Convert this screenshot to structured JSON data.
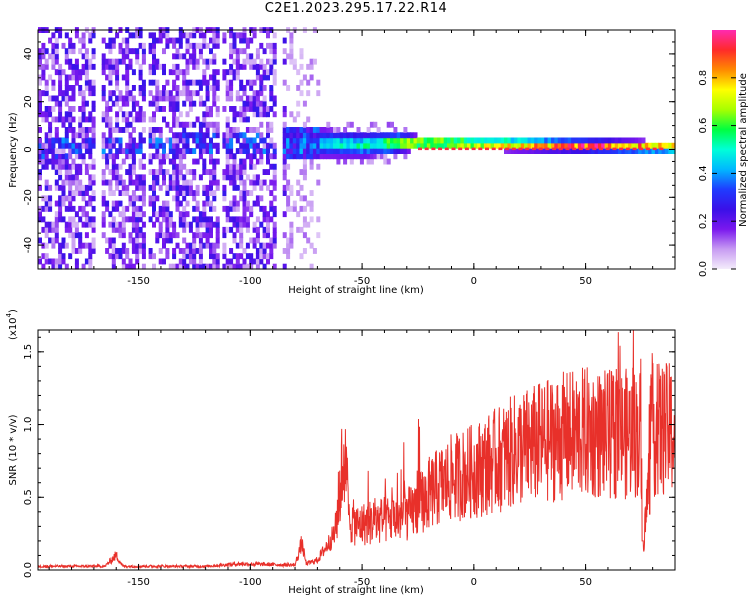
{
  "title": "C2E1.2023.295.17.22.R14",
  "chart_data": [
    {
      "type": "heatmap",
      "xlabel": "Height of straight line (km)",
      "ylabel": "Frequency (Hz)",
      "xlim": [
        -195,
        90
      ],
      "ylim": [
        -50,
        50
      ],
      "xticks": [
        -150,
        -100,
        -50,
        0,
        50
      ],
      "yticks": [
        -40,
        -20,
        0,
        20,
        40
      ],
      "colorbar": {
        "label": "Normalized spectral amplitude",
        "range": [
          0,
          1
        ],
        "ticks": [
          "0.0",
          "0.2",
          "0.4",
          "0.6",
          "0.8"
        ],
        "tick_values": [
          0.0,
          0.2,
          0.4,
          0.6,
          0.8
        ],
        "colors": [
          "#f4ecfb",
          "#c79bf2",
          "#7a18ee",
          "#3a10e8",
          "#1f3cff",
          "#00b8ff",
          "#00ffd8",
          "#00ff40",
          "#a8ff00",
          "#ffff00",
          "#ff8a00",
          "#ff2a2a",
          "#ff2ab0"
        ]
      },
      "signal_profile": {
        "description_free_values": true,
        "noise_until_km": -85,
        "band_center_hz": [
          [
            -195,
            0
          ],
          [
            -75,
            2
          ],
          [
            -50,
            1
          ],
          [
            -35,
            2
          ],
          [
            90,
            0
          ]
        ],
        "band_halfwidth_hz": [
          [
            -75,
            6
          ],
          [
            -40,
            5
          ],
          [
            -25,
            3
          ],
          [
            90,
            2.5
          ]
        ],
        "peak_amplitude": [
          [
            -195,
            0.3
          ],
          [
            -80,
            0.35
          ],
          [
            -60,
            0.45
          ],
          [
            -45,
            0.5
          ],
          [
            -30,
            0.85
          ],
          [
            90,
            0.9
          ]
        ]
      }
    },
    {
      "type": "line",
      "xlabel": "Height of straight line (km)",
      "ylabel": "SNR (10 * v/v)",
      "scale_label": "(x10",
      "scale_exp": "4",
      "scale_close": ")",
      "xlim": [
        -195,
        90
      ],
      "ylim": [
        0,
        16500
      ],
      "xticks": [
        -150,
        -100,
        -50,
        0,
        50
      ],
      "yticks": [
        0,
        5000,
        10000,
        15000
      ],
      "ytick_labels": [
        "0.0",
        "0.5",
        "1.0",
        "1.5"
      ],
      "color": "#e8302a",
      "envelope": {
        "x": [
          -195,
          -165,
          -160,
          -157,
          -120,
          -105,
          -80,
          -77,
          -75,
          -70,
          -62,
          -58,
          -56,
          -52,
          -45,
          -35,
          -28,
          -20,
          -10,
          0,
          10,
          20,
          30,
          40,
          50,
          60,
          70,
          75,
          76,
          80,
          85,
          90
        ],
        "y": [
          300,
          300,
          1200,
          300,
          300,
          500,
          400,
          2200,
          500,
          800,
          3000,
          9500,
          4000,
          3500,
          3800,
          4000,
          4500,
          6000,
          7200,
          7800,
          8600,
          9500,
          10000,
          10500,
          10800,
          10600,
          10700,
          10800,
          2000,
          11000,
          11000,
          11000
        ]
      }
    }
  ]
}
